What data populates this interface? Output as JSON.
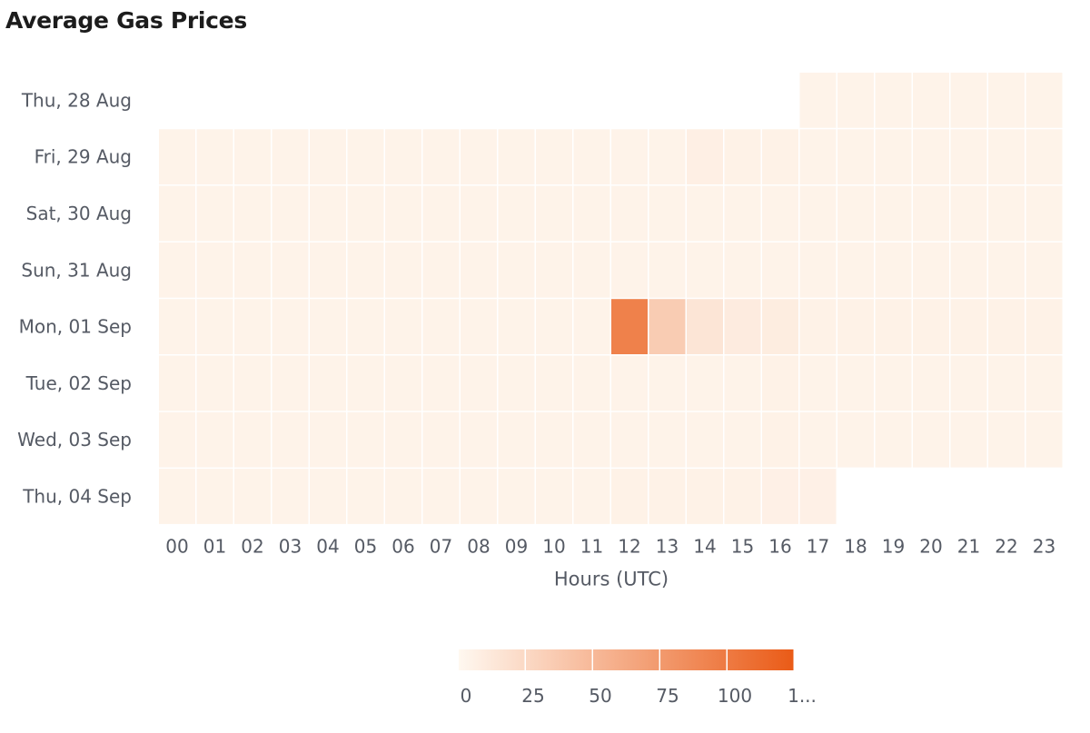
{
  "title": "Average Gas Prices",
  "chart_data": {
    "type": "heatmap",
    "title": "Average Gas Prices",
    "xlabel": "Hours (UTC)",
    "ylabel": "",
    "x_categories": [
      "00",
      "01",
      "02",
      "03",
      "04",
      "05",
      "06",
      "07",
      "08",
      "09",
      "10",
      "11",
      "12",
      "13",
      "14",
      "15",
      "16",
      "17",
      "18",
      "19",
      "20",
      "21",
      "22",
      "23"
    ],
    "y_categories": [
      "Thu, 28 Aug",
      "Fri, 29 Aug",
      "Sat, 30 Aug",
      "Sun, 31 Aug",
      "Mon, 01 Sep",
      "Tue, 02 Sep",
      "Wed, 03 Sep",
      "Thu, 04 Sep"
    ],
    "values": [
      [
        null,
        null,
        null,
        null,
        null,
        null,
        null,
        null,
        null,
        null,
        null,
        null,
        null,
        null,
        null,
        null,
        null,
        4,
        4,
        4,
        4,
        4,
        4,
        4
      ],
      [
        4,
        4,
        4,
        4,
        4,
        4,
        4,
        4,
        4,
        4,
        4,
        4,
        4,
        4,
        7,
        5,
        5,
        4,
        4,
        4,
        4,
        4,
        4,
        4
      ],
      [
        4,
        4,
        4,
        4,
        4,
        4,
        4,
        4,
        4,
        4,
        4,
        4,
        4,
        4,
        4,
        4,
        4,
        4,
        4,
        4,
        4,
        4,
        4,
        4
      ],
      [
        4,
        4,
        4,
        4,
        4,
        4,
        4,
        4,
        4,
        4,
        4,
        4,
        4,
        4,
        4,
        4,
        4,
        4,
        4,
        4,
        4,
        4,
        4,
        4
      ],
      [
        4,
        4,
        4,
        4,
        4,
        4,
        4,
        4,
        4,
        4,
        4,
        4,
        95,
        35,
        15,
        10,
        9,
        5,
        5,
        5,
        5,
        5,
        5,
        5
      ],
      [
        4,
        4,
        4,
        4,
        4,
        4,
        4,
        4,
        4,
        4,
        4,
        4,
        4,
        4,
        4,
        4,
        5,
        4,
        4,
        4,
        4,
        4,
        4,
        4
      ],
      [
        4,
        4,
        4,
        4,
        4,
        4,
        4,
        4,
        4,
        4,
        4,
        4,
        4,
        4,
        4,
        4,
        5,
        4,
        4,
        4,
        4,
        4,
        4,
        4
      ],
      [
        4,
        4,
        4,
        4,
        4,
        4,
        4,
        4,
        4,
        4,
        4,
        4,
        5,
        5,
        5,
        5,
        6,
        6,
        null,
        null,
        null,
        null,
        null,
        null
      ]
    ],
    "color_scale": {
      "min": 0,
      "max": 125,
      "low_color": "#fff8f0",
      "high_color": "#ea5b17"
    },
    "legend": {
      "position": "bottom-center",
      "ticks": [
        "0",
        "25",
        "50",
        "75",
        "100",
        "1..."
      ]
    },
    "grid": false
  }
}
